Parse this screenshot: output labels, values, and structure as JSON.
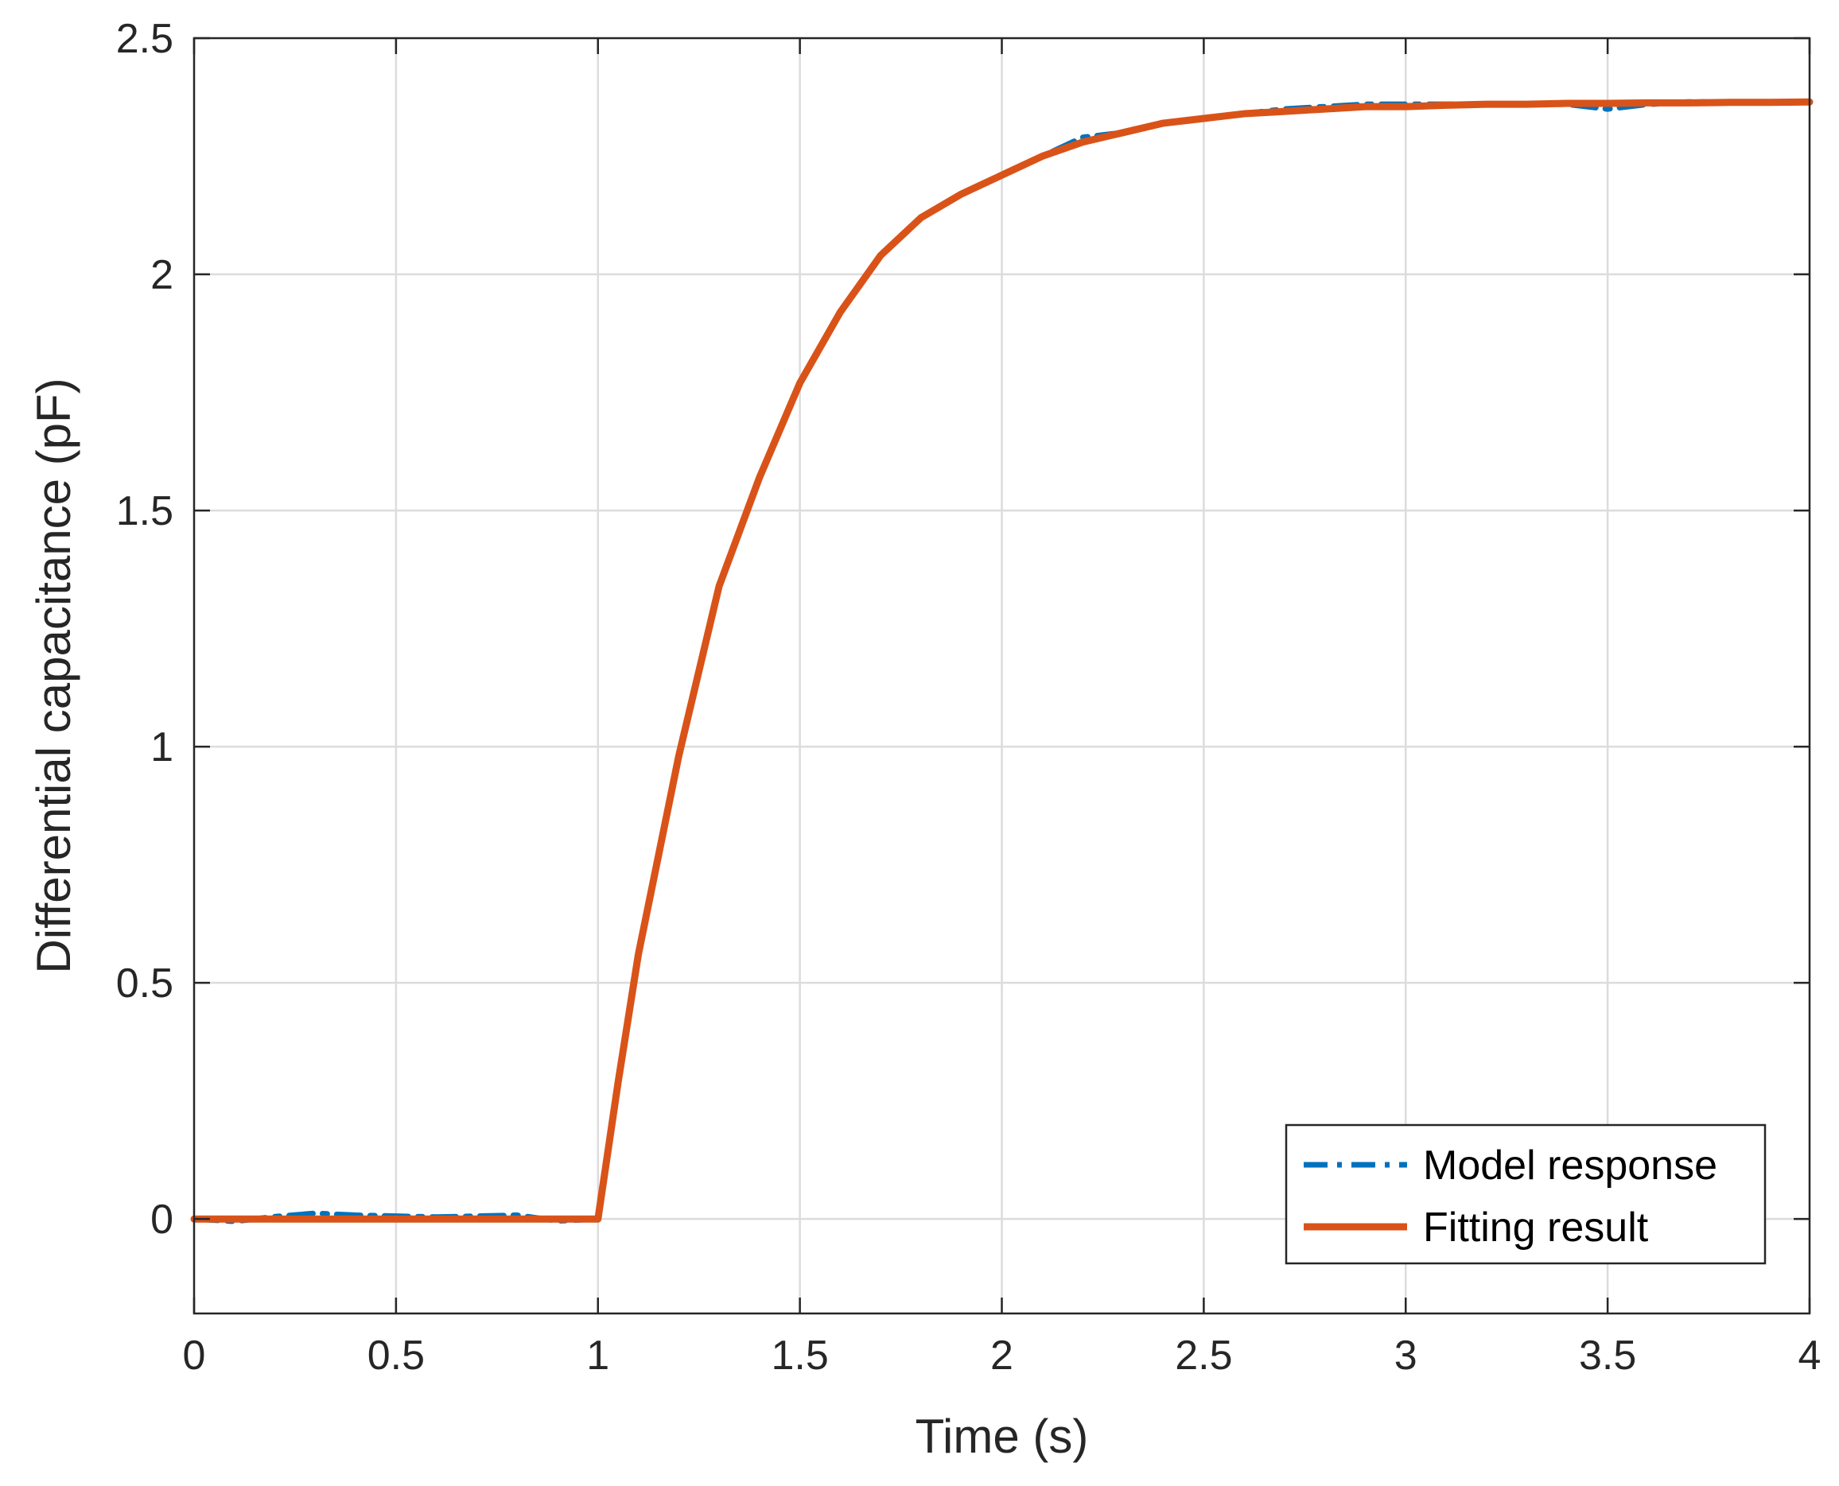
{
  "chart_data": {
    "type": "line",
    "xlabel": "Time (s)",
    "ylabel": "Differential capacitance (pF)",
    "xlim": [
      0,
      4
    ],
    "ylim": [
      -0.2,
      2.5
    ],
    "xticks": [
      0,
      0.5,
      1,
      1.5,
      2,
      2.5,
      3,
      3.5,
      4
    ],
    "xtick_labels": [
      "0",
      "0.5",
      "1",
      "1.5",
      "2",
      "2.5",
      "3",
      "3.5",
      "4"
    ],
    "yticks": [
      0,
      0.5,
      1,
      1.5,
      2,
      2.5
    ],
    "ytick_labels": [
      "0",
      "0.5",
      "1",
      "1.5",
      "2",
      "2.5"
    ],
    "grid": true,
    "legend_position": "bottom-right",
    "series": [
      {
        "name": "Model response",
        "style": "dash-dot",
        "color": "#0072BD",
        "x": [
          0,
          0.1,
          0.2,
          0.3,
          0.4,
          0.5,
          0.6,
          0.7,
          0.8,
          0.9,
          1.0,
          1.05,
          1.1,
          1.2,
          1.3,
          1.4,
          1.5,
          1.6,
          1.7,
          1.8,
          1.9,
          2.0,
          2.1,
          2.2,
          2.3,
          2.4,
          2.5,
          2.6,
          2.7,
          2.8,
          2.9,
          3.0,
          3.1,
          3.2,
          3.3,
          3.4,
          3.5,
          3.6,
          3.7,
          3.8,
          3.9,
          4.0
        ],
        "y": [
          0.0,
          -0.005,
          0.005,
          0.012,
          0.008,
          0.006,
          0.004,
          0.006,
          0.008,
          -0.004,
          0.0,
          0.29,
          0.56,
          0.98,
          1.34,
          1.57,
          1.77,
          1.92,
          2.04,
          2.12,
          2.17,
          2.21,
          2.25,
          2.29,
          2.3,
          2.32,
          2.33,
          2.34,
          2.35,
          2.355,
          2.36,
          2.36,
          2.36,
          2.36,
          2.36,
          2.36,
          2.35,
          2.36,
          2.365,
          2.365,
          2.365,
          2.365
        ]
      },
      {
        "name": "Fitting result",
        "style": "solid",
        "color": "#D95319",
        "x": [
          0,
          0.1,
          0.2,
          0.3,
          0.4,
          0.5,
          0.6,
          0.7,
          0.8,
          0.9,
          1.0,
          1.05,
          1.1,
          1.2,
          1.3,
          1.4,
          1.5,
          1.6,
          1.7,
          1.8,
          1.9,
          2.0,
          2.1,
          2.2,
          2.3,
          2.4,
          2.5,
          2.6,
          2.7,
          2.8,
          2.9,
          3.0,
          3.1,
          3.2,
          3.3,
          3.4,
          3.5,
          3.6,
          3.7,
          3.8,
          3.9,
          4.0
        ],
        "y": [
          0,
          0,
          0,
          0,
          0,
          0,
          0,
          0,
          0,
          0,
          0,
          0.29,
          0.56,
          0.98,
          1.34,
          1.57,
          1.77,
          1.92,
          2.04,
          2.12,
          2.17,
          2.21,
          2.25,
          2.28,
          2.3,
          2.32,
          2.33,
          2.34,
          2.345,
          2.35,
          2.355,
          2.355,
          2.358,
          2.36,
          2.36,
          2.362,
          2.362,
          2.363,
          2.363,
          2.364,
          2.364,
          2.365
        ]
      }
    ]
  }
}
